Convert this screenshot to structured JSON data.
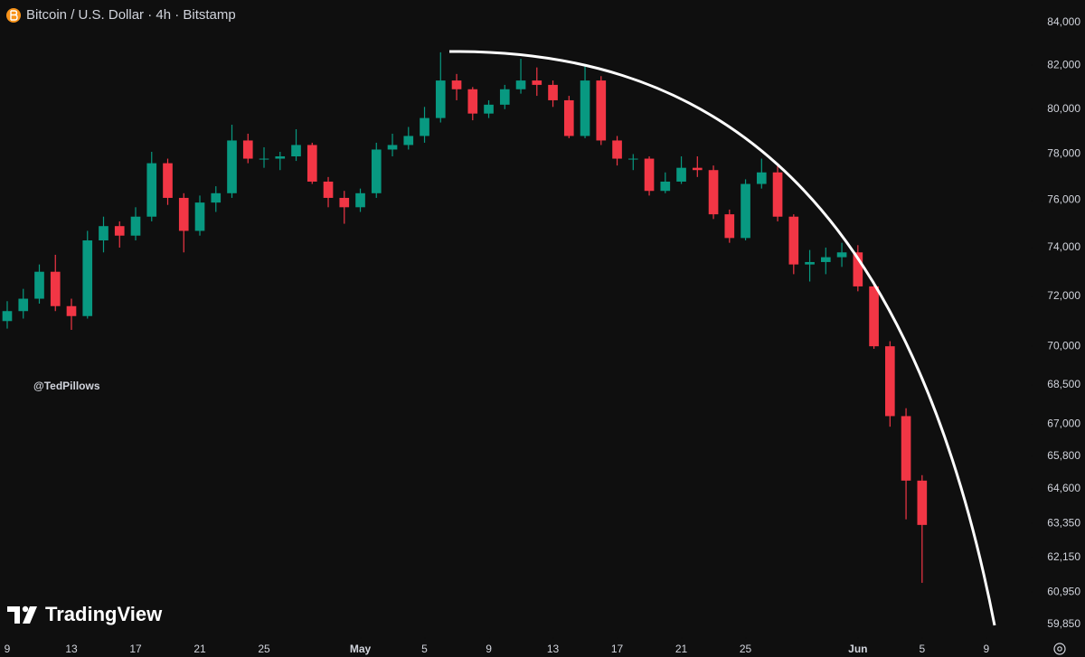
{
  "chart_data": {
    "type": "candlestick",
    "title": "Bitcoin / U.S. Dollar · 4h · Bitstamp",
    "watermark": "@TedPillows",
    "brand": "TradingView",
    "x": [
      0,
      1,
      2,
      3,
      4,
      5,
      6,
      7,
      8,
      9,
      10,
      11,
      12,
      13,
      14,
      15,
      16,
      17,
      18,
      19,
      20,
      21,
      22,
      23,
      24,
      25,
      26,
      27,
      28,
      29,
      30,
      31,
      32,
      33,
      34,
      35,
      36,
      37,
      38,
      39,
      40,
      41,
      42,
      43,
      44,
      45,
      46,
      47,
      48,
      49,
      50,
      51,
      52,
      53,
      54,
      55,
      56,
      57
    ],
    "open": [
      71000,
      71400,
      71900,
      73000,
      71600,
      71200,
      74300,
      74900,
      74500,
      75300,
      77600,
      76100,
      74700,
      75900,
      76300,
      78600,
      77800,
      77800,
      77900,
      78400,
      76800,
      76100,
      75700,
      76300,
      78200,
      78400,
      78800,
      79600,
      81300,
      80900,
      79800,
      80200,
      80900,
      81300,
      81100,
      80400,
      78800,
      81300,
      78600,
      77800,
      77800,
      76400,
      76800,
      77400,
      77300,
      75400,
      74400,
      76700,
      77200,
      75300,
      73300,
      73400,
      73600,
      73800,
      72400,
      70000,
      67300,
      64900
    ],
    "high": [
      71800,
      72300,
      73300,
      73700,
      71900,
      74700,
      75300,
      75100,
      75700,
      78100,
      77800,
      76300,
      76200,
      76600,
      79300,
      78900,
      78300,
      78100,
      79100,
      78500,
      77000,
      76400,
      76500,
      78500,
      78900,
      79200,
      80100,
      82600,
      81600,
      81000,
      80400,
      81100,
      82300,
      81900,
      81300,
      80600,
      82000,
      81500,
      78800,
      78000,
      77900,
      77200,
      77900,
      77900,
      77500,
      75600,
      76900,
      77800,
      77600,
      75400,
      73900,
      74000,
      74200,
      74100,
      72600,
      70200,
      67600,
      65100
    ],
    "low": [
      70700,
      71100,
      71700,
      71400,
      70650,
      71100,
      73800,
      74000,
      74300,
      75100,
      75800,
      73800,
      74500,
      75500,
      76100,
      77600,
      77400,
      77300,
      77700,
      76700,
      75700,
      75000,
      75500,
      76100,
      77900,
      78200,
      78500,
      79400,
      80400,
      79500,
      79600,
      80000,
      80700,
      80600,
      80100,
      78700,
      78700,
      78400,
      77500,
      77300,
      76200,
      76300,
      76700,
      77000,
      75200,
      74200,
      74300,
      76500,
      75100,
      72900,
      72600,
      72900,
      73200,
      72200,
      69900,
      66900,
      63500,
      61270
    ],
    "close": [
      71400,
      71900,
      73000,
      71600,
      71200,
      74300,
      74900,
      74500,
      75300,
      77600,
      76100,
      74700,
      75900,
      76300,
      78600,
      77800,
      77800,
      77900,
      78400,
      76800,
      76100,
      75700,
      76300,
      78200,
      78400,
      78800,
      79600,
      81300,
      80900,
      79800,
      80200,
      80900,
      81300,
      81100,
      80400,
      78800,
      81300,
      78600,
      77800,
      77800,
      76400,
      76800,
      77400,
      77300,
      75400,
      74400,
      76700,
      77200,
      75300,
      73300,
      73400,
      73600,
      73800,
      72400,
      70000,
      67300,
      64900,
      63300
    ],
    "up_color": "#089981",
    "down_color": "#f23645",
    "xlim": [
      -0.45,
      63.77
    ],
    "xticks": [
      {
        "value": 0,
        "label": "9"
      },
      {
        "value": 4,
        "label": "13"
      },
      {
        "value": 8,
        "label": "17"
      },
      {
        "value": 12,
        "label": "21"
      },
      {
        "value": 16,
        "label": "25"
      },
      {
        "value": 22,
        "label": "May"
      },
      {
        "value": 26,
        "label": "5"
      },
      {
        "value": 30,
        "label": "9"
      },
      {
        "value": 34,
        "label": "13"
      },
      {
        "value": 38,
        "label": "17"
      },
      {
        "value": 42,
        "label": "21"
      },
      {
        "value": 46,
        "label": "25"
      },
      {
        "value": 53,
        "label": "Jun"
      },
      {
        "value": 57,
        "label": "5"
      },
      {
        "value": 61,
        "label": "9"
      }
    ],
    "ylim": [
      59425,
      85070
    ],
    "log_scale": true,
    "grid": false,
    "yticks": [
      {
        "value": 84000,
        "label": "84,000"
      },
      {
        "value": 82000,
        "label": "82,000"
      },
      {
        "value": 80000,
        "label": "80,000"
      },
      {
        "value": 78000,
        "label": "78,000"
      },
      {
        "value": 76000,
        "label": "76,000"
      },
      {
        "value": 74000,
        "label": "74,000"
      },
      {
        "value": 72000,
        "label": "72,000"
      },
      {
        "value": 70000,
        "label": "70,000"
      },
      {
        "value": 68500,
        "label": "68,500"
      },
      {
        "value": 67000,
        "label": "67,000"
      },
      {
        "value": 65800,
        "label": "65,800"
      },
      {
        "value": 64600,
        "label": "64,600"
      },
      {
        "value": 63350,
        "label": "63,350"
      },
      {
        "value": 62150,
        "label": "62,150"
      },
      {
        "value": 60950,
        "label": "60,950"
      },
      {
        "value": 59850,
        "label": "59,850"
      }
    ]
  }
}
